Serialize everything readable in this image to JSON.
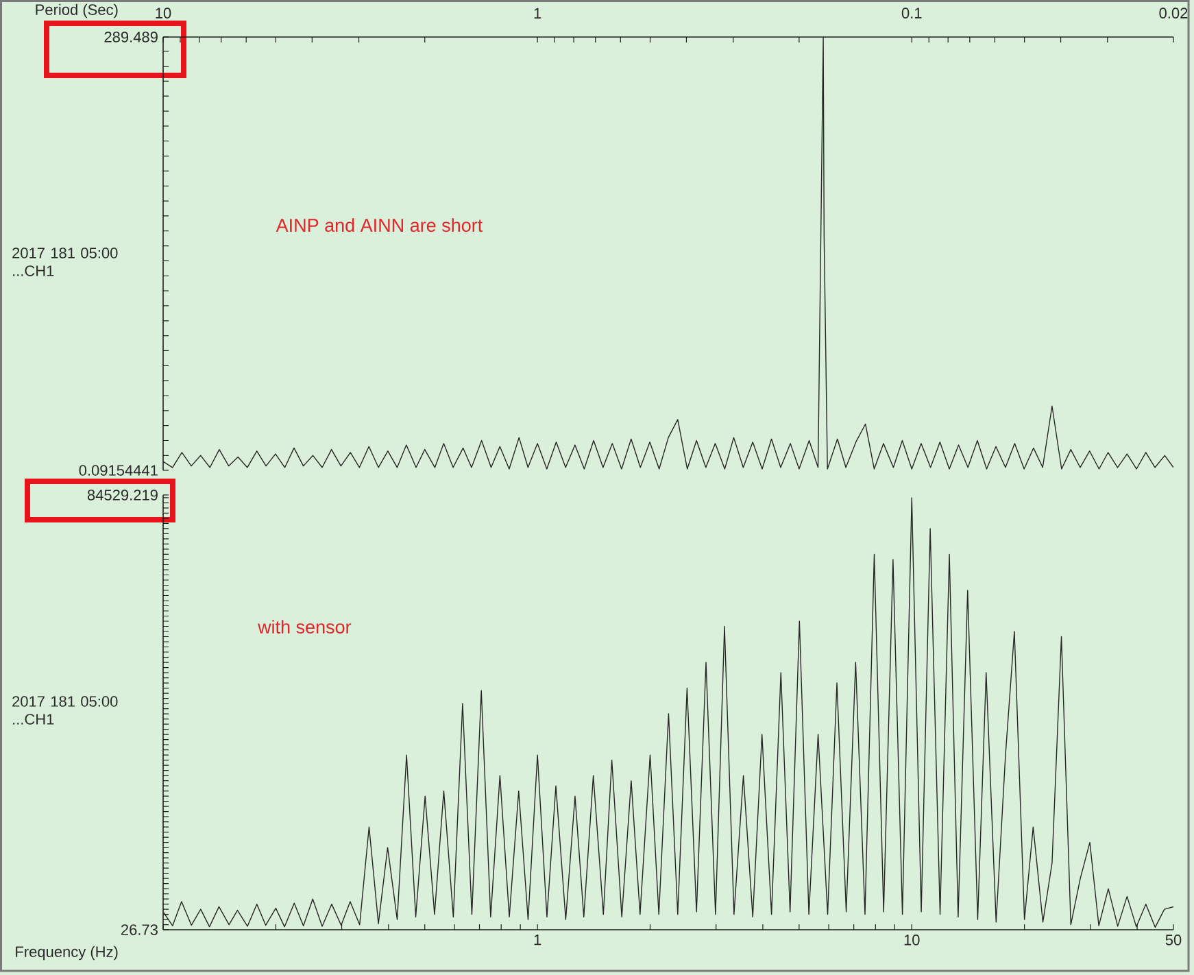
{
  "chart_data": [
    {
      "type": "line",
      "xlabel": "Period (Sec)",
      "ylabel": "2017 181 05:00 ...CH1",
      "annotations": [
        "AINP and AINN are short"
      ],
      "color": "#262626",
      "log": "x",
      "xlim": [
        10,
        0.02
      ],
      "ylim": [
        0.09154441,
        289.489
      ],
      "xticks": [
        10,
        {
          "value": 9,
          "label": null
        },
        {
          "value": 8,
          "label": null
        },
        {
          "value": 7,
          "label": null
        },
        {
          "value": 6,
          "label": null
        },
        {
          "value": 5,
          "label": null
        },
        {
          "value": 4,
          "label": null
        },
        {
          "value": 3,
          "label": null
        },
        {
          "value": 2,
          "label": null
        },
        1,
        {
          "value": 0.9,
          "label": null
        },
        {
          "value": 0.8,
          "label": null
        },
        {
          "value": 0.7,
          "label": null
        },
        {
          "value": 0.6,
          "label": null
        },
        {
          "value": 0.5,
          "label": null
        },
        {
          "value": 0.4,
          "label": null
        },
        {
          "value": 0.3,
          "label": null
        },
        {
          "value": 0.2,
          "label": null
        },
        0.1,
        {
          "value": 0.09,
          "label": null
        },
        {
          "value": 0.08,
          "label": null
        },
        {
          "value": 0.07,
          "label": null
        },
        {
          "value": 0.06,
          "label": null
        },
        {
          "value": 0.05,
          "label": null
        },
        {
          "value": 0.04,
          "label": null
        },
        {
          "value": 0.03,
          "label": null
        },
        0.02
      ],
      "yticks": [
        0.09154441,
        {
          "value": 10,
          "label": null
        },
        {
          "value": 20,
          "label": null
        },
        {
          "value": 30,
          "label": null
        },
        {
          "value": 40,
          "label": null
        },
        {
          "value": 50,
          "label": null
        },
        {
          "value": 60,
          "label": null
        },
        {
          "value": 70,
          "label": null
        },
        {
          "value": 80,
          "label": null
        },
        {
          "value": 90,
          "label": null
        },
        {
          "value": 100,
          "label": null
        },
        {
          "value": 110,
          "label": null
        },
        {
          "value": 120,
          "label": null
        },
        {
          "value": 130,
          "label": null
        },
        {
          "value": 140,
          "label": null
        },
        {
          "value": 150,
          "label": null
        },
        {
          "value": 160,
          "label": null
        },
        {
          "value": 170,
          "label": null
        },
        {
          "value": 180,
          "label": null
        },
        {
          "value": 190,
          "label": null
        },
        {
          "value": 200,
          "label": null
        },
        {
          "value": 210,
          "label": null
        },
        {
          "value": 220,
          "label": null
        },
        {
          "value": 230,
          "label": null
        },
        {
          "value": 240,
          "label": null
        },
        {
          "value": 250,
          "label": null
        },
        {
          "value": 260,
          "label": null
        },
        {
          "value": 270,
          "label": null
        },
        {
          "value": 280,
          "label": null
        },
        289.489
      ],
      "x": [
        10,
        9.44,
        8.91,
        8.41,
        7.94,
        7.5,
        7.08,
        6.68,
        6.31,
        5.96,
        5.62,
        5.31,
        5.01,
        4.73,
        4.47,
        4.22,
        3.98,
        3.76,
        3.55,
        3.35,
        3.16,
        2.99,
        2.82,
        2.66,
        2.51,
        2.37,
        2.24,
        2.11,
        2,
        1.88,
        1.78,
        1.68,
        1.58,
        1.5,
        1.41,
        1.33,
        1.26,
        1.19,
        1.12,
        1.06,
        1,
        0.944,
        0.891,
        0.841,
        0.794,
        0.75,
        0.708,
        0.668,
        0.631,
        0.596,
        0.562,
        0.531,
        0.501,
        0.473,
        0.447,
        0.422,
        0.398,
        0.376,
        0.355,
        0.335,
        0.316,
        0.299,
        0.282,
        0.266,
        0.251,
        0.237,
        0.224,
        0.211,
        0.2,
        0.188,
        0.178,
        0.1724,
        0.1715,
        0.168,
        0.158,
        0.15,
        0.141,
        0.133,
        0.126,
        0.119,
        0.112,
        0.106,
        0.1,
        0.0944,
        0.0891,
        0.0841,
        0.0794,
        0.075,
        0.0708,
        0.0668,
        0.0631,
        0.0596,
        0.0562,
        0.0531,
        0.0501,
        0.0473,
        0.0447,
        0.0422,
        0.0398,
        0.0376,
        0.0355,
        0.0335,
        0.0316,
        0.0299,
        0.0282,
        0.0266,
        0.0251,
        0.0237,
        0.0224,
        0.0211,
        0.02
      ],
      "values": [
        6,
        2,
        12,
        3,
        10,
        2,
        14,
        3,
        9,
        2,
        13,
        3,
        11,
        2,
        15,
        3,
        10,
        2,
        14,
        3,
        12,
        2,
        16,
        2,
        13,
        2,
        17,
        2,
        14,
        2,
        18,
        2,
        15,
        2,
        20,
        2,
        16,
        1,
        22,
        2,
        18,
        1,
        19,
        2,
        17,
        1,
        20,
        2,
        18,
        1,
        21,
        2,
        19,
        1,
        22,
        34,
        1,
        20,
        2,
        18,
        1,
        22,
        2,
        19,
        1,
        21,
        2,
        18,
        1,
        20,
        2,
        289,
        156,
        1,
        21,
        2,
        19,
        31,
        1,
        18,
        2,
        20,
        1,
        18,
        2,
        19,
        1,
        17,
        2,
        20,
        1,
        16,
        2,
        18,
        1,
        15,
        2,
        43,
        1,
        14,
        2,
        13,
        1,
        12,
        2,
        11,
        1,
        12,
        2,
        10,
        2
      ]
    },
    {
      "type": "line",
      "xlabel": "Frequency (Hz)",
      "ylabel": "2017 181 05:00 ...CH1",
      "annotations": [
        "with sensor"
      ],
      "color": "#262626",
      "log": "x",
      "xlim": [
        0.1,
        50
      ],
      "ylim": [
        26.73,
        84529.219
      ],
      "xticks": [
        {
          "value": 0.1,
          "label": null
        },
        {
          "value": 0.2,
          "label": null
        },
        {
          "value": 0.3,
          "label": null
        },
        {
          "value": 0.4,
          "label": null
        },
        {
          "value": 0.5,
          "label": null
        },
        {
          "value": 0.6,
          "label": null
        },
        {
          "value": 0.7,
          "label": null
        },
        {
          "value": 0.8,
          "label": null
        },
        {
          "value": 0.9,
          "label": null
        },
        1,
        {
          "value": 2,
          "label": null
        },
        {
          "value": 3,
          "label": null
        },
        {
          "value": 4,
          "label": null
        },
        {
          "value": 5,
          "label": null
        },
        {
          "value": 6,
          "label": null
        },
        {
          "value": 7,
          "label": null
        },
        {
          "value": 8,
          "label": null
        },
        {
          "value": 9,
          "label": null
        },
        10,
        {
          "value": 20,
          "label": null
        },
        {
          "value": 30,
          "label": null
        },
        {
          "value": 40,
          "label": null
        },
        50
      ],
      "yticks": [
        26.73,
        {
          "value": 1000,
          "label": null
        },
        {
          "value": 2000,
          "label": null
        },
        {
          "value": 3000,
          "label": null
        },
        {
          "value": 4000,
          "label": null
        },
        {
          "value": 5000,
          "label": null
        },
        {
          "value": 6000,
          "label": null
        },
        {
          "value": 7000,
          "label": null
        },
        {
          "value": 8000,
          "label": null
        },
        {
          "value": 9000,
          "label": null
        },
        {
          "value": 10000,
          "label": null
        },
        {
          "value": 11000,
          "label": null
        },
        {
          "value": 12000,
          "label": null
        },
        {
          "value": 13000,
          "label": null
        },
        {
          "value": 14000,
          "label": null
        },
        {
          "value": 15000,
          "label": null
        },
        {
          "value": 16000,
          "label": null
        },
        {
          "value": 17000,
          "label": null
        },
        {
          "value": 18000,
          "label": null
        },
        {
          "value": 19000,
          "label": null
        },
        {
          "value": 20000,
          "label": null
        },
        {
          "value": 21000,
          "label": null
        },
        {
          "value": 22000,
          "label": null
        },
        {
          "value": 23000,
          "label": null
        },
        {
          "value": 24000,
          "label": null
        },
        {
          "value": 25000,
          "label": null
        },
        {
          "value": 26000,
          "label": null
        },
        {
          "value": 27000,
          "label": null
        },
        {
          "value": 28000,
          "label": null
        },
        {
          "value": 29000,
          "label": null
        },
        {
          "value": 30000,
          "label": null
        },
        {
          "value": 31000,
          "label": null
        },
        {
          "value": 32000,
          "label": null
        },
        {
          "value": 33000,
          "label": null
        },
        {
          "value": 34000,
          "label": null
        },
        {
          "value": 35000,
          "label": null
        },
        {
          "value": 36000,
          "label": null
        },
        {
          "value": 37000,
          "label": null
        },
        {
          "value": 38000,
          "label": null
        },
        {
          "value": 39000,
          "label": null
        },
        {
          "value": 40000,
          "label": null
        },
        {
          "value": 41000,
          "label": null
        },
        {
          "value": 42000,
          "label": null
        },
        {
          "value": 43000,
          "label": null
        },
        {
          "value": 44000,
          "label": null
        },
        {
          "value": 45000,
          "label": null
        },
        {
          "value": 46000,
          "label": null
        },
        {
          "value": 47000,
          "label": null
        },
        {
          "value": 48000,
          "label": null
        },
        {
          "value": 49000,
          "label": null
        },
        {
          "value": 50000,
          "label": null
        },
        {
          "value": 51000,
          "label": null
        },
        {
          "value": 52000,
          "label": null
        },
        {
          "value": 53000,
          "label": null
        },
        {
          "value": 54000,
          "label": null
        },
        {
          "value": 55000,
          "label": null
        },
        {
          "value": 56000,
          "label": null
        },
        {
          "value": 57000,
          "label": null
        },
        {
          "value": 58000,
          "label": null
        },
        {
          "value": 59000,
          "label": null
        },
        {
          "value": 60000,
          "label": null
        },
        {
          "value": 61000,
          "label": null
        },
        {
          "value": 62000,
          "label": null
        },
        {
          "value": 63000,
          "label": null
        },
        {
          "value": 64000,
          "label": null
        },
        {
          "value": 65000,
          "label": null
        },
        {
          "value": 66000,
          "label": null
        },
        {
          "value": 67000,
          "label": null
        },
        {
          "value": 68000,
          "label": null
        },
        {
          "value": 69000,
          "label": null
        },
        {
          "value": 70000,
          "label": null
        },
        {
          "value": 71000,
          "label": null
        },
        {
          "value": 72000,
          "label": null
        },
        {
          "value": 73000,
          "label": null
        },
        {
          "value": 74000,
          "label": null
        },
        {
          "value": 75000,
          "label": null
        },
        {
          "value": 76000,
          "label": null
        },
        {
          "value": 77000,
          "label": null
        },
        {
          "value": 78000,
          "label": null
        },
        {
          "value": 79000,
          "label": null
        },
        {
          "value": 80000,
          "label": null
        },
        {
          "value": 81000,
          "label": null
        },
        {
          "value": 82000,
          "label": null
        },
        {
          "value": 83000,
          "label": null
        },
        {
          "value": 84000,
          "label": null
        },
        84529.219
      ],
      "x": [
        0.1,
        0.106,
        0.112,
        0.119,
        0.126,
        0.133,
        0.141,
        0.15,
        0.158,
        0.168,
        0.178,
        0.188,
        0.2,
        0.211,
        0.224,
        0.237,
        0.251,
        0.266,
        0.282,
        0.299,
        0.316,
        0.335,
        0.355,
        0.376,
        0.398,
        0.422,
        0.447,
        0.473,
        0.501,
        0.531,
        0.562,
        0.596,
        0.631,
        0.668,
        0.708,
        0.75,
        0.794,
        0.841,
        0.891,
        0.944,
        1,
        1.06,
        1.12,
        1.19,
        1.26,
        1.33,
        1.41,
        1.5,
        1.58,
        1.68,
        1.78,
        1.88,
        2,
        2.11,
        2.24,
        2.37,
        2.51,
        2.66,
        2.82,
        2.99,
        3.16,
        3.35,
        3.55,
        3.76,
        3.98,
        4.22,
        4.47,
        4.73,
        5.01,
        5.31,
        5.62,
        5.96,
        6.31,
        6.68,
        7.08,
        7.5,
        7.94,
        8.41,
        8.91,
        9.44,
        10,
        10.6,
        11.2,
        11.9,
        12.6,
        13.3,
        14.1,
        15,
        15.8,
        16.8,
        17.8,
        18.8,
        20,
        21.1,
        22.4,
        23.7,
        25.1,
        26.6,
        28.2,
        29.9,
        31.6,
        33.5,
        35.5,
        37.6,
        39.8,
        42.2,
        44.7,
        47.3,
        50
      ],
      "values": [
        3500,
        800,
        5500,
        900,
        4000,
        600,
        4500,
        1000,
        3800,
        700,
        5000,
        900,
        4200,
        600,
        5200,
        800,
        6000,
        700,
        5000,
        900,
        5500,
        1000,
        20000,
        1200,
        16000,
        2000,
        34000,
        2500,
        26000,
        3000,
        27000,
        2500,
        44000,
        3000,
        46500,
        2500,
        30000,
        2500,
        27000,
        2000,
        34000,
        2500,
        28000,
        2000,
        26000,
        2500,
        30000,
        3000,
        33000,
        2500,
        29000,
        3000,
        34000,
        3000,
        42000,
        3000,
        47000,
        3500,
        52000,
        3000,
        59000,
        3000,
        30000,
        2500,
        38000,
        3000,
        50000,
        3500,
        60000,
        3000,
        38000,
        3000,
        48000,
        3500,
        52000,
        3000,
        73000,
        3500,
        72000,
        3000,
        84000,
        3500,
        78000,
        3000,
        73000,
        2500,
        66000,
        2000,
        50000,
        1500,
        34000,
        58000,
        2000,
        20000,
        1500,
        13000,
        57000,
        1000,
        10000,
        17000,
        800,
        8000,
        700,
        6500,
        600,
        5000,
        500,
        4000,
        4500
      ]
    }
  ]
}
